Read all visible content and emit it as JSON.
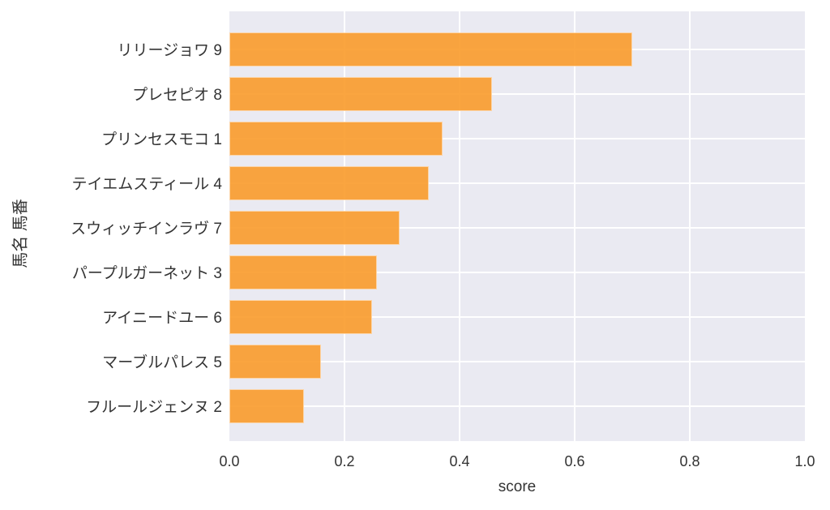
{
  "chart_data": {
    "type": "bar",
    "orientation": "horizontal",
    "xlabel": "score",
    "ylabel": "馬名 馬番",
    "categories": [
      "リリージョワ 9",
      "プレセピオ 8",
      "プリンセスモコ 1",
      "テイエムスティール 4",
      "スウィッチインラヴ 7",
      "パープルガーネット 3",
      "アイニードユー 6",
      "マーブルパレス 5",
      "フルールジェンヌ 2"
    ],
    "values": [
      0.7,
      0.456,
      0.37,
      0.346,
      0.296,
      0.256,
      0.248,
      0.159,
      0.13
    ],
    "xlim": [
      0,
      1.0
    ],
    "xtick_values": [
      0.0,
      0.2,
      0.4,
      0.6,
      0.8,
      1.0
    ],
    "xtick_labels": [
      "0.0",
      "0.2",
      "0.4",
      "0.6",
      "0.8",
      "1.0"
    ],
    "grid": true,
    "legend": false,
    "colors": {
      "bar": "#f99b2b",
      "plot_background": "#eaeaf2",
      "gridline": "#ffffff",
      "text": "#333333",
      "figure_background": "#ffffff"
    }
  }
}
